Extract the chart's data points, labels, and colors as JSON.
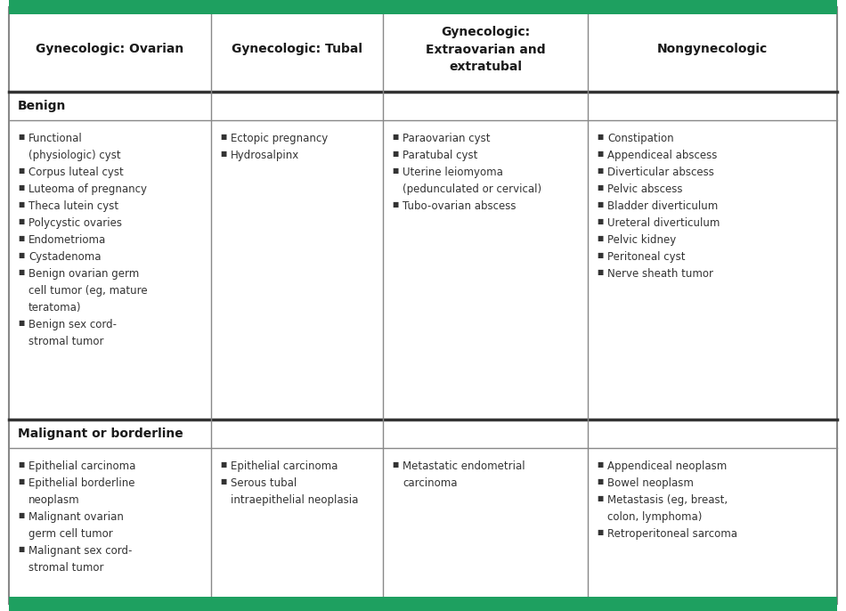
{
  "top_border_color": "#1ea060",
  "bottom_border_color": "#1ea060",
  "header_bg": "#e5e5e5",
  "cell_bg": "#ffffff",
  "outer_border_color": "#888888",
  "inner_border_color": "#888888",
  "thick_border_color": "#333333",
  "header_text_color": "#1a1a1a",
  "section_text_color": "#1a1a1a",
  "cell_text_color": "#333333",
  "headers": [
    "Gynecologic: Ovarian",
    "Gynecologic: Tubal",
    "Gynecologic:\nExtraovarian and\nextratubal",
    "Nongynecologic"
  ],
  "section_benign": "Benign",
  "section_malignant": "Malignant or borderline",
  "benign_col0": [
    "Functional\n(physiologic) cyst",
    "Corpus luteal cyst",
    "Luteoma of pregnancy",
    "Theca lutein cyst",
    "Polycystic ovaries",
    "Endometrioma",
    "Cystadenoma",
    "Benign ovarian germ\ncell tumor (eg, mature\nteratoma)",
    "Benign sex cord-\nstromal tumor"
  ],
  "benign_col1": [
    "Ectopic pregnancy",
    "Hydrosalpinx"
  ],
  "benign_col2": [
    "Paraovarian cyst",
    "Paratubal cyst",
    "Uterine leiomyoma\n(pedunculated or cervical)",
    "Tubo-ovarian abscess"
  ],
  "benign_col3": [
    "Constipation",
    "Appendiceal abscess",
    "Diverticular abscess",
    "Pelvic abscess",
    "Bladder diverticulum",
    "Ureteral diverticulum",
    "Pelvic kidney",
    "Peritoneal cyst",
    "Nerve sheath tumor"
  ],
  "malignant_col0": [
    "Epithelial carcinoma",
    "Epithelial borderline\nneoplasm",
    "Malignant ovarian\ngerm cell tumor",
    "Malignant sex cord-\nstromal tumor"
  ],
  "malignant_col1": [
    "Epithelial carcinoma",
    "Serous tubal\nintraepithelial neoplasia"
  ],
  "malignant_col2": [
    "Metastatic endometrial\ncarcinoma"
  ],
  "malignant_col3": [
    "Appendiceal neoplasm",
    "Bowel neoplasm",
    "Metastasis (eg, breast,\ncolon, lymphoma)",
    "Retroperitoneal sarcoma"
  ],
  "fig_width": 9.5,
  "fig_height": 6.86,
  "dpi": 100
}
